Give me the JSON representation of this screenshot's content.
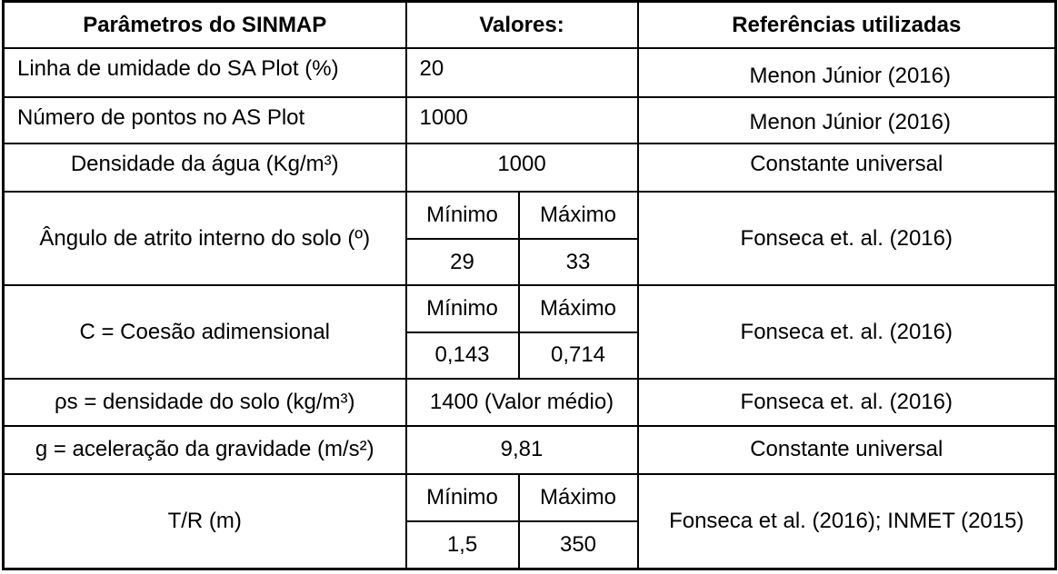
{
  "header": {
    "col1": "Parâmetros do SINMAP",
    "col2": "Valores:",
    "col3": "Referências utilizadas"
  },
  "rows": [
    {
      "param": "Linha de umidade do SA Plot (%)",
      "value": "20",
      "ref": "Menon Júnior (2016)"
    },
    {
      "param": "Número de pontos no AS Plot",
      "value": "1000",
      "ref": "Menon Júnior (2016)"
    },
    {
      "param": "Densidade da água (Kg/m³)",
      "value": "1000",
      "ref": "Constante universal"
    },
    {
      "param": "Ângulo de atrito interno do solo (º)",
      "min_label": "Mínimo",
      "max_label": "Máximo",
      "min": "29",
      "max": "33",
      "ref": "Fonseca et. al. (2016)"
    },
    {
      "param": "C = Coesão adimensional",
      "min_label": "Mínimo",
      "max_label": "Máximo",
      "min": "0,143",
      "max": "0,714",
      "ref": "Fonseca et. al. (2016)"
    },
    {
      "param": "ρs = densidade do solo (kg/m³)",
      "value": "1400 (Valor médio)",
      "ref": "Fonseca et. al. (2016)"
    },
    {
      "param": "g = aceleração da gravidade (m/s²)",
      "value": "9,81",
      "ref": "Constante universal"
    },
    {
      "param": "T/R (m)",
      "min_label": "Mínimo",
      "max_label": "Máximo",
      "min": "1,5",
      "max": "350",
      "ref": "Fonseca et al. (2016); INMET (2015)"
    }
  ]
}
